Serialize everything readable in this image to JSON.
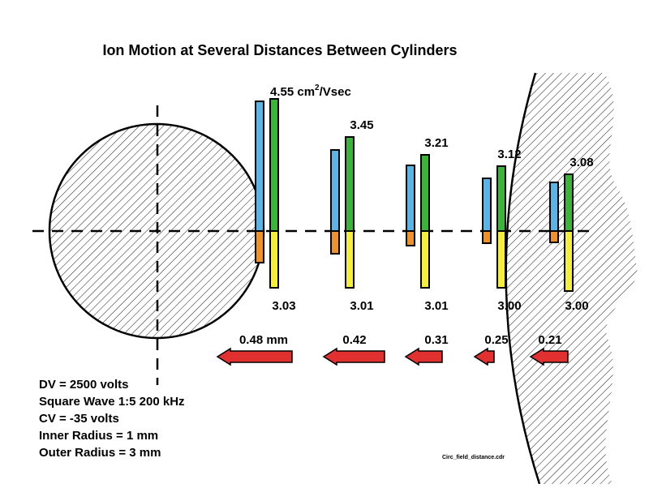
{
  "title": "Ion Motion at Several Distances Between Cylinders",
  "mobility_unit_prefix": "4.55 cm",
  "mobility_unit_superscript": "2",
  "mobility_unit_suffix": "/Vsec",
  "colors": {
    "upper_outer": "#5ab4e5",
    "upper_inner": "#3ab53a",
    "lower_outer": "#f0922a",
    "lower_inner": "#f5ee3a",
    "arrow": "#e03030",
    "hatch": "#000000"
  },
  "groups": [
    {
      "top_label": "",
      "bottom_label": "3.03",
      "distance_label": "0.48 mm",
      "upper_outer": 160,
      "upper_inner": 163,
      "lower_outer": 39,
      "lower_inner": 70
    },
    {
      "top_label": "3.45",
      "bottom_label": "3.01",
      "distance_label": "0.42",
      "upper_outer": 100,
      "upper_inner": 116,
      "lower_outer": 28,
      "lower_inner": 70
    },
    {
      "top_label": "3.21",
      "bottom_label": "3.01",
      "distance_label": "0.31",
      "upper_outer": 81,
      "upper_inner": 94,
      "lower_outer": 18,
      "lower_inner": 70
    },
    {
      "top_label": "3.12",
      "bottom_label": "3.00",
      "distance_label": "0.25",
      "upper_outer": 65,
      "upper_inner": 80,
      "lower_outer": 15,
      "lower_inner": 70
    },
    {
      "top_label": "3.08",
      "bottom_label": "3.00",
      "distance_label": "0.21",
      "upper_outer": 60,
      "upper_inner": 70,
      "lower_outer": 14,
      "lower_inner": 74
    }
  ],
  "params": [
    "DV = 2500 volts",
    "Square Wave 1:5 200 kHz",
    "CV = -35 volts",
    "Inner Radius = 1 mm",
    "Outer Radius = 3 mm"
  ],
  "filename": "Circ_field_distance.cdr"
}
